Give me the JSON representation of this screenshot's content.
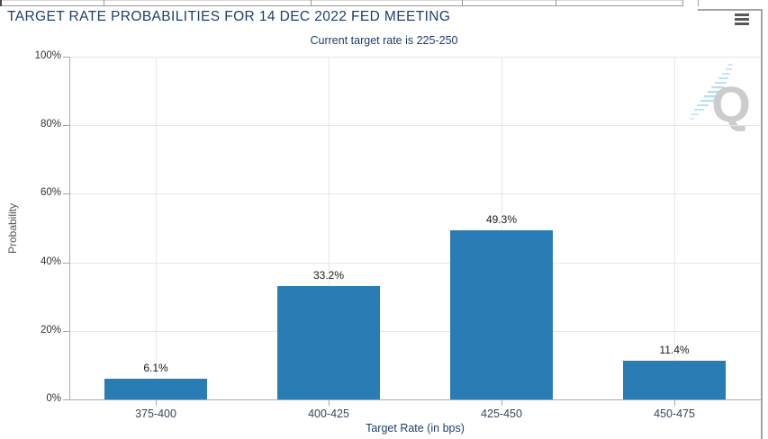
{
  "header": {
    "title": "TARGET RATE PROBABILITIES FOR 14 DEC 2022 FED MEETING",
    "subtitle": "Current target rate is 225-250"
  },
  "menu": {
    "icon": "hamburger-menu-icon"
  },
  "watermark": {
    "icon": "quandl-logo-watermark",
    "letter": "Q"
  },
  "chart_data": {
    "type": "bar",
    "title": "TARGET RATE PROBABILITIES FOR 14 DEC 2022 FED MEETING",
    "subtitle": "Current target rate is 225-250",
    "xlabel": "Target Rate (in bps)",
    "ylabel": "Probability",
    "categories": [
      "375-400",
      "400-425",
      "425-450",
      "450-475"
    ],
    "values": [
      6.1,
      33.2,
      49.3,
      11.4
    ],
    "value_labels": [
      "6.1%",
      "33.2%",
      "49.3%",
      "11.4%"
    ],
    "ylim": [
      0,
      100
    ],
    "ytick_values": [
      0,
      20,
      40,
      60,
      80,
      100
    ],
    "ytick_labels": [
      "0%",
      "20%",
      "40%",
      "60%",
      "80%",
      "100%"
    ],
    "grid": true,
    "legend_shown": false,
    "bar_color": "#2a7cb5"
  },
  "colors": {
    "title_navy": "#1d3e6e",
    "bar_blue": "#2a7cb5",
    "gridline": "#e6e6e6",
    "axis_gray": "#a6a6a6",
    "value_label": "#1a1a1a",
    "category_label": "#36465e",
    "watermark_gray": "#cccccc",
    "watermark_blue": "#a6d7ee"
  }
}
